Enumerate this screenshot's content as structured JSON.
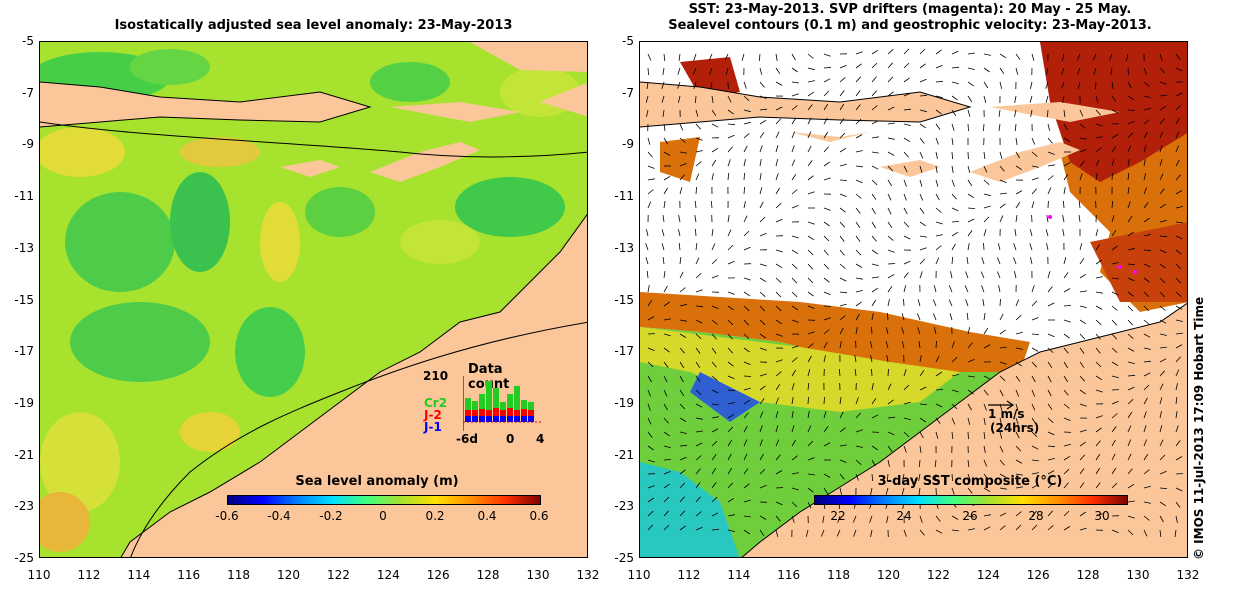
{
  "left_panel": {
    "title": "Isostatically adjusted sea level anomaly: 23-May-2013",
    "colorbar_label": "Sea level anomaly (m)",
    "colorbar_ticks": [
      "-0.6",
      "-0.4",
      "-0.2",
      "0",
      "0.2",
      "0.4",
      "0.6"
    ],
    "inset": {
      "count": "210",
      "title": "Data count",
      "sat1": "Cr2",
      "sat1_color": "#22cc22",
      "sat2": "J-2",
      "sat2_color": "#ff0000",
      "sat3": "J-1",
      "sat3_color": "#0000ff",
      "x_start": "-6d",
      "x_mid": "0",
      "x_end": "4"
    }
  },
  "right_panel": {
    "title_line1": "SST: 23-May-2013. SVP drifters (magenta): 20 May - 25 May.",
    "title_line2": "Sealevel contours (0.1 m) and geostrophic velocity: 23-May-2013.",
    "colorbar_label": "3-day SST composite (°C)",
    "colorbar_ticks": [
      "22",
      "24",
      "26",
      "28",
      "30"
    ],
    "scale_label1": "1 m/s",
    "scale_label2": "(24hrs)"
  },
  "axes": {
    "lat_ticks": [
      "-5",
      "-7",
      "-9",
      "-11",
      "-13",
      "-15",
      "-17",
      "-19",
      "-21",
      "-23",
      "-25"
    ],
    "lon_ticks": [
      "110",
      "112",
      "114",
      "116",
      "118",
      "120",
      "122",
      "124",
      "126",
      "128",
      "130",
      "132"
    ]
  },
  "credit": "© IMOS 11-Jul-2013 17:09 Hobart Time",
  "colors": {
    "land": "#fbc69a",
    "sea_base": "#a6e22e",
    "sst_warm": "#d9700a"
  }
}
